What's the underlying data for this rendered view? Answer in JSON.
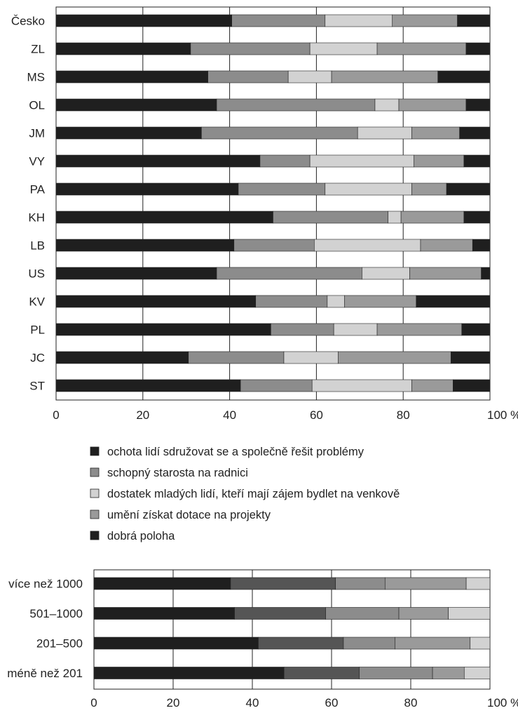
{
  "colors": {
    "c1": "#1f1f1f",
    "c2": "#8c8c8c",
    "c3": "#d2d2d2",
    "c4": "#9a9a9a",
    "c5": "#1f1f1f",
    "b_dark": "#555555"
  },
  "chart_data": [
    {
      "type": "bar",
      "orientation": "horizontal",
      "stacked": true,
      "categories": [
        "Česko",
        "ZL",
        "MS",
        "OL",
        "JM",
        "VY",
        "PA",
        "KH",
        "LB",
        "US",
        "KV",
        "PL",
        "JC",
        "ST"
      ],
      "xlim": [
        0,
        100
      ],
      "x_ticks": [
        "0",
        "20",
        "40",
        "60",
        "80",
        "100 %"
      ],
      "grid": true,
      "legend_position": "bottom",
      "series": [
        {
          "name": "ochota lidí sdružovat se a společně řešit problémy",
          "color_key": "c1",
          "values": [
            40.5,
            31,
            35,
            37,
            33.5,
            47,
            42,
            50,
            41,
            37,
            46,
            49.5,
            30.5,
            42.5
          ]
        },
        {
          "name": "schopný starosta na radnici",
          "color_key": "c2",
          "values": [
            21.5,
            27.5,
            18.5,
            36.5,
            36,
            11.5,
            20,
            26.5,
            18.5,
            33.5,
            16.5,
            14.5,
            22,
            16.5
          ]
        },
        {
          "name": "dostatek mladých lidí, kteří mají zájem bydlet na venkově",
          "color_key": "c3",
          "values": [
            15.5,
            15.5,
            10,
            5.5,
            12.5,
            24,
            20,
            3,
            24.5,
            11,
            4,
            10,
            12.5,
            23
          ]
        },
        {
          "name": "umění získat dotace na projekty",
          "color_key": "c4",
          "values": [
            15,
            20.5,
            24.5,
            15.5,
            11,
            11.5,
            8,
            14.5,
            12,
            16.5,
            16.5,
            19.5,
            26,
            9.5
          ]
        },
        {
          "name": "dobrá poloha",
          "color_key": "c5",
          "values": [
            7.5,
            5.5,
            12,
            5.5,
            7,
            6,
            10,
            6,
            4,
            2,
            17,
            6.5,
            9,
            8.5
          ]
        }
      ]
    },
    {
      "type": "bar",
      "orientation": "horizontal",
      "stacked": true,
      "categories": [
        "více než 1000",
        "501–1000",
        "201–500",
        "méně než 201"
      ],
      "xlim": [
        0,
        100
      ],
      "x_ticks": [
        "0",
        "20",
        "40",
        "60",
        "80",
        "100 %"
      ],
      "grid": true,
      "series": [
        {
          "color_key": "c1",
          "values": [
            34.5,
            35.5,
            41.5,
            48
          ]
        },
        {
          "color_key": "b_dark",
          "values": [
            26.5,
            23,
            21.5,
            19
          ]
        },
        {
          "color_key": "c2",
          "values": [
            12.5,
            18.5,
            13,
            18.5
          ]
        },
        {
          "color_key": "c4",
          "values": [
            20.5,
            12.5,
            19,
            8
          ]
        },
        {
          "color_key": "c3",
          "values": [
            6,
            10.5,
            5,
            6.5
          ]
        }
      ]
    }
  ]
}
